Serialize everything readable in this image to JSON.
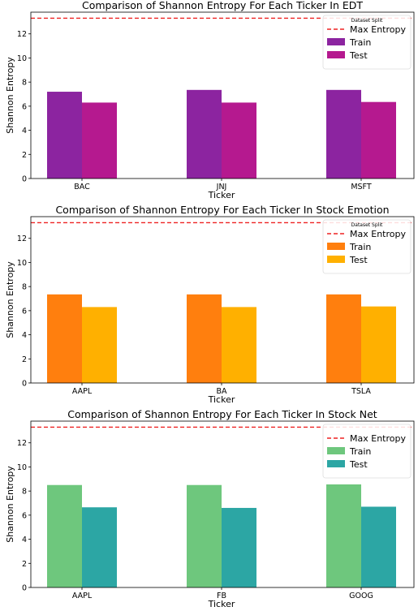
{
  "chart_data": [
    {
      "type": "bar",
      "title": "Comparison of Shannon Entropy For Each Ticker In EDT",
      "xlabel": "Ticker",
      "ylabel": "Shannon Entropy",
      "categories": [
        "BAC",
        "JNJ",
        "MSFT"
      ],
      "series": [
        {
          "name": "Train",
          "values": [
            7.2,
            7.35,
            7.35
          ],
          "color": "#8c24a0"
        },
        {
          "name": "Test",
          "values": [
            6.3,
            6.3,
            6.35
          ],
          "color": "#b5198f"
        }
      ],
      "max_entropy": 13.3,
      "max_entropy_label": "Max Entropy",
      "max_entropy_color": "#ee2222",
      "legend_title": "Dataset Split",
      "legend_position": "top-right",
      "ylim": [
        0,
        13.8
      ],
      "yticks": [
        0,
        2,
        4,
        6,
        8,
        10,
        12
      ],
      "grid": false
    },
    {
      "type": "bar",
      "title": "Comparison of Shannon Entropy For Each Ticker In Stock Emotion",
      "xlabel": "Ticker",
      "ylabel": "Shannon Entropy",
      "categories": [
        "AAPL",
        "BA",
        "TSLA"
      ],
      "series": [
        {
          "name": "Train",
          "values": [
            7.35,
            7.35,
            7.35
          ],
          "color": "#ff7f0e"
        },
        {
          "name": "Test",
          "values": [
            6.3,
            6.3,
            6.35
          ],
          "color": "#ffb000"
        }
      ],
      "max_entropy": 13.3,
      "max_entropy_label": "Max Entropy",
      "max_entropy_color": "#ee2222",
      "legend_title": "Dataset Split",
      "legend_position": "top-right",
      "ylim": [
        0,
        13.8
      ],
      "yticks": [
        0,
        2,
        4,
        6,
        8,
        10,
        12
      ],
      "grid": false
    },
    {
      "type": "bar",
      "title": "Comparison of Shannon Entropy For Each Ticker In Stock Net",
      "xlabel": "Ticker",
      "ylabel": "Shannon Entropy",
      "categories": [
        "AAPL",
        "FB",
        "GOOG"
      ],
      "series": [
        {
          "name": "Train",
          "values": [
            8.5,
            8.5,
            8.55
          ],
          "color": "#6ec77d"
        },
        {
          "name": "Test",
          "values": [
            6.65,
            6.6,
            6.7
          ],
          "color": "#2ca6a4"
        }
      ],
      "max_entropy": 13.3,
      "max_entropy_label": "Max Entropy",
      "max_entropy_color": "#ee2222",
      "legend_title": "",
      "legend_position": "top-right",
      "ylim": [
        0,
        13.8
      ],
      "yticks": [
        0,
        2,
        4,
        6,
        8,
        10,
        12
      ],
      "grid": false
    }
  ]
}
